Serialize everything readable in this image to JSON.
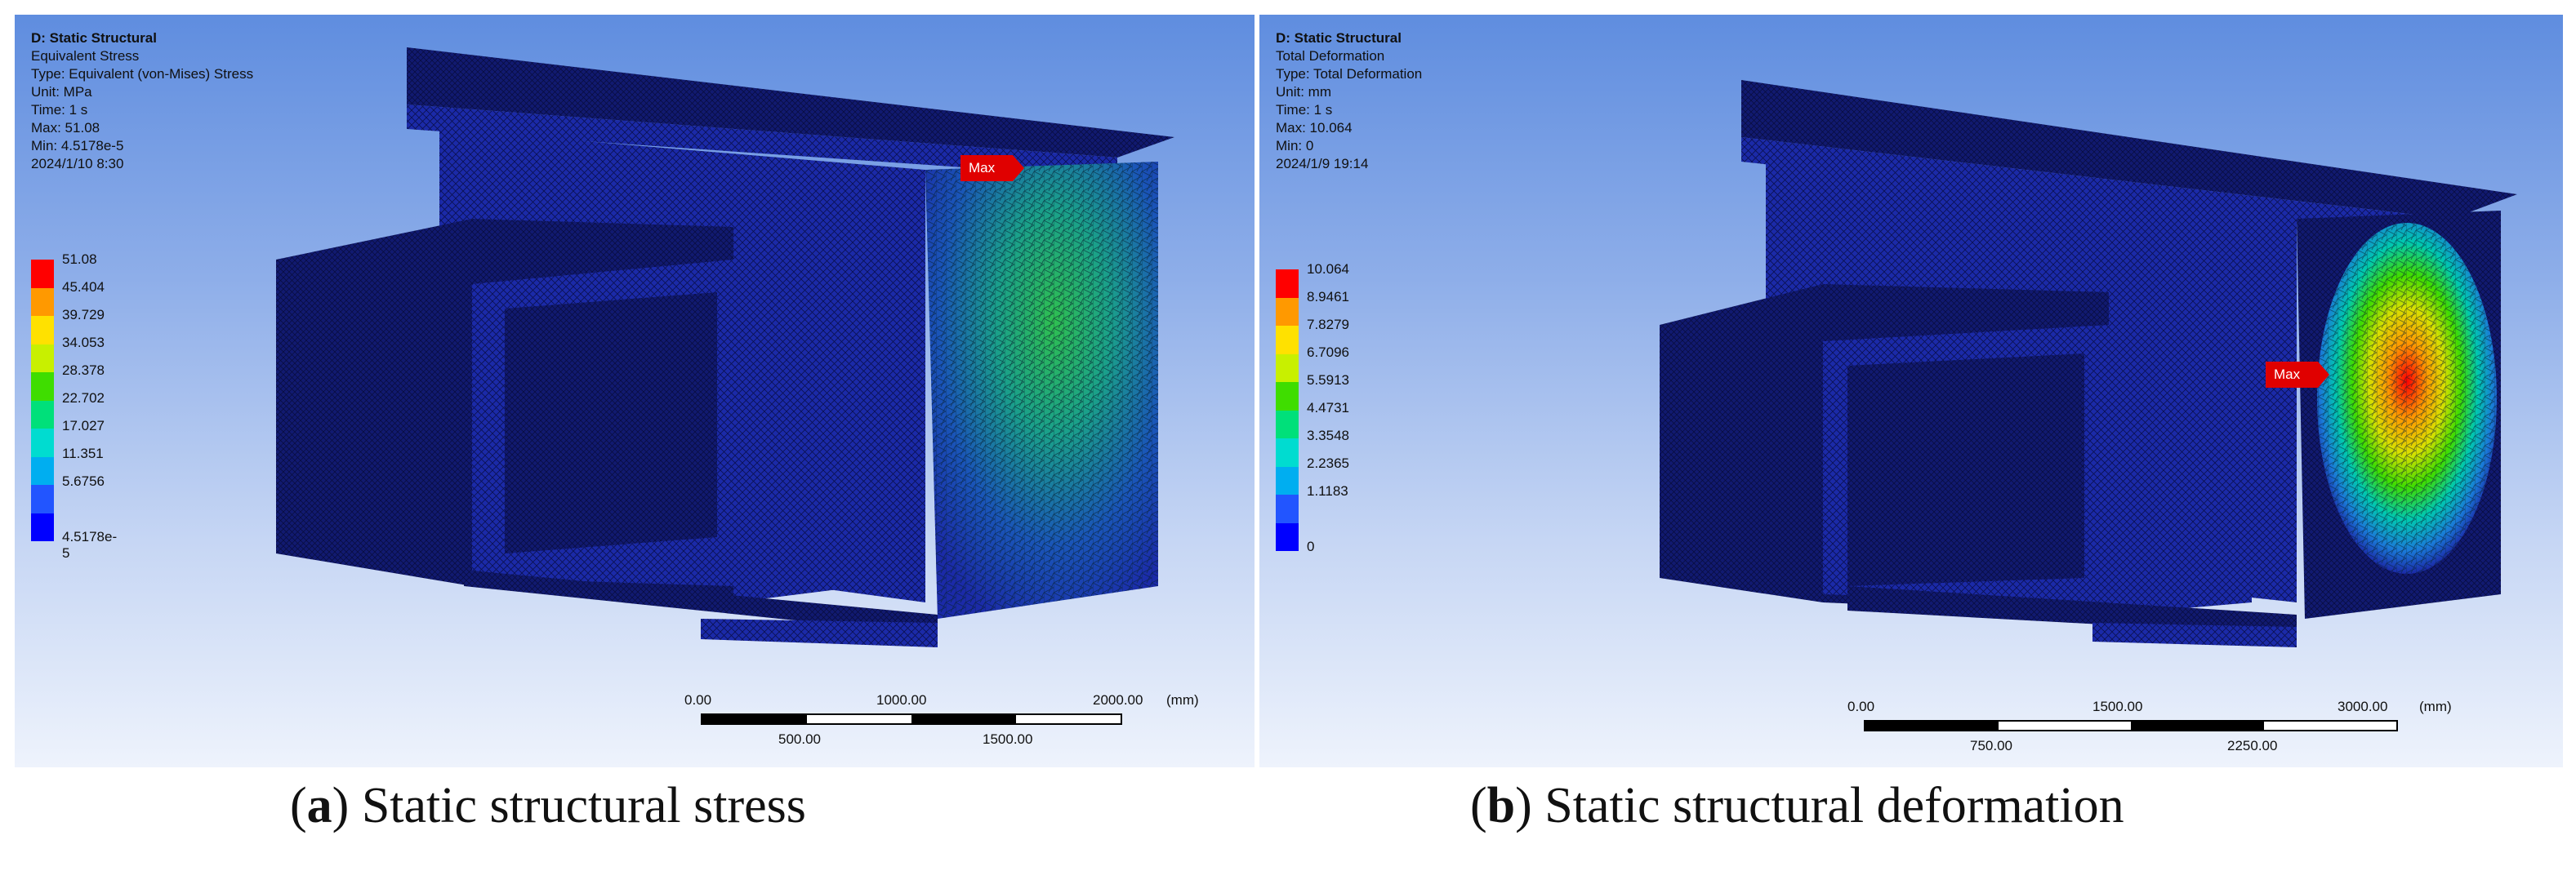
{
  "panels": [
    {
      "info": {
        "title": "D: Static Structural",
        "result": "Equivalent Stress",
        "type": "Type: Equivalent (von-Mises) Stress",
        "unit": "Unit: MPa",
        "time": "Time: 1 s",
        "max": "Max: 51.08",
        "min": "Min: 4.5178e-5",
        "date": "2024/1/10 8:30"
      },
      "legend": [
        "51.08",
        "45.404",
        "39.729",
        "34.053",
        "28.378",
        "22.702",
        "17.027",
        "11.351",
        "5.6756",
        "4.5178e-5"
      ],
      "max_tag": "Max",
      "scale": {
        "ticks_top": [
          "0.00",
          "1000.00",
          "2000.00"
        ],
        "ticks_bottom": [
          "500.00",
          "1500.00"
        ],
        "unit": "(mm)"
      },
      "caption": {
        "letter": "a",
        "text": "Static structural stress"
      }
    },
    {
      "info": {
        "title": "D: Static Structural",
        "result": "Total Deformation",
        "type": "Type: Total Deformation",
        "unit": "Unit: mm",
        "time": "Time: 1 s",
        "max": "Max: 10.064",
        "min": "Min: 0",
        "date": "2024/1/9 19:14"
      },
      "legend": [
        "10.064",
        "8.9461",
        "7.8279",
        "6.7096",
        "5.5913",
        "4.4731",
        "3.3548",
        "2.2365",
        "1.1183",
        "0"
      ],
      "max_tag": "Max",
      "scale": {
        "ticks_top": [
          "0.00",
          "1500.00",
          "3000.00"
        ],
        "ticks_bottom": [
          "750.00",
          "2250.00"
        ],
        "unit": "(mm)"
      },
      "caption": {
        "letter": "b",
        "text": "Static structural deformation"
      }
    }
  ],
  "colors": {
    "legend_scale": [
      "#ff0000",
      "#ff9900",
      "#ffe100",
      "#c8f000",
      "#3fdd00",
      "#00e07a",
      "#00dcd0",
      "#00aef0",
      "#2255ff",
      "#0000ff"
    ],
    "model_body": "#1b2aa8",
    "model_dark": "#0a1050",
    "max_tag": "#e00000"
  }
}
